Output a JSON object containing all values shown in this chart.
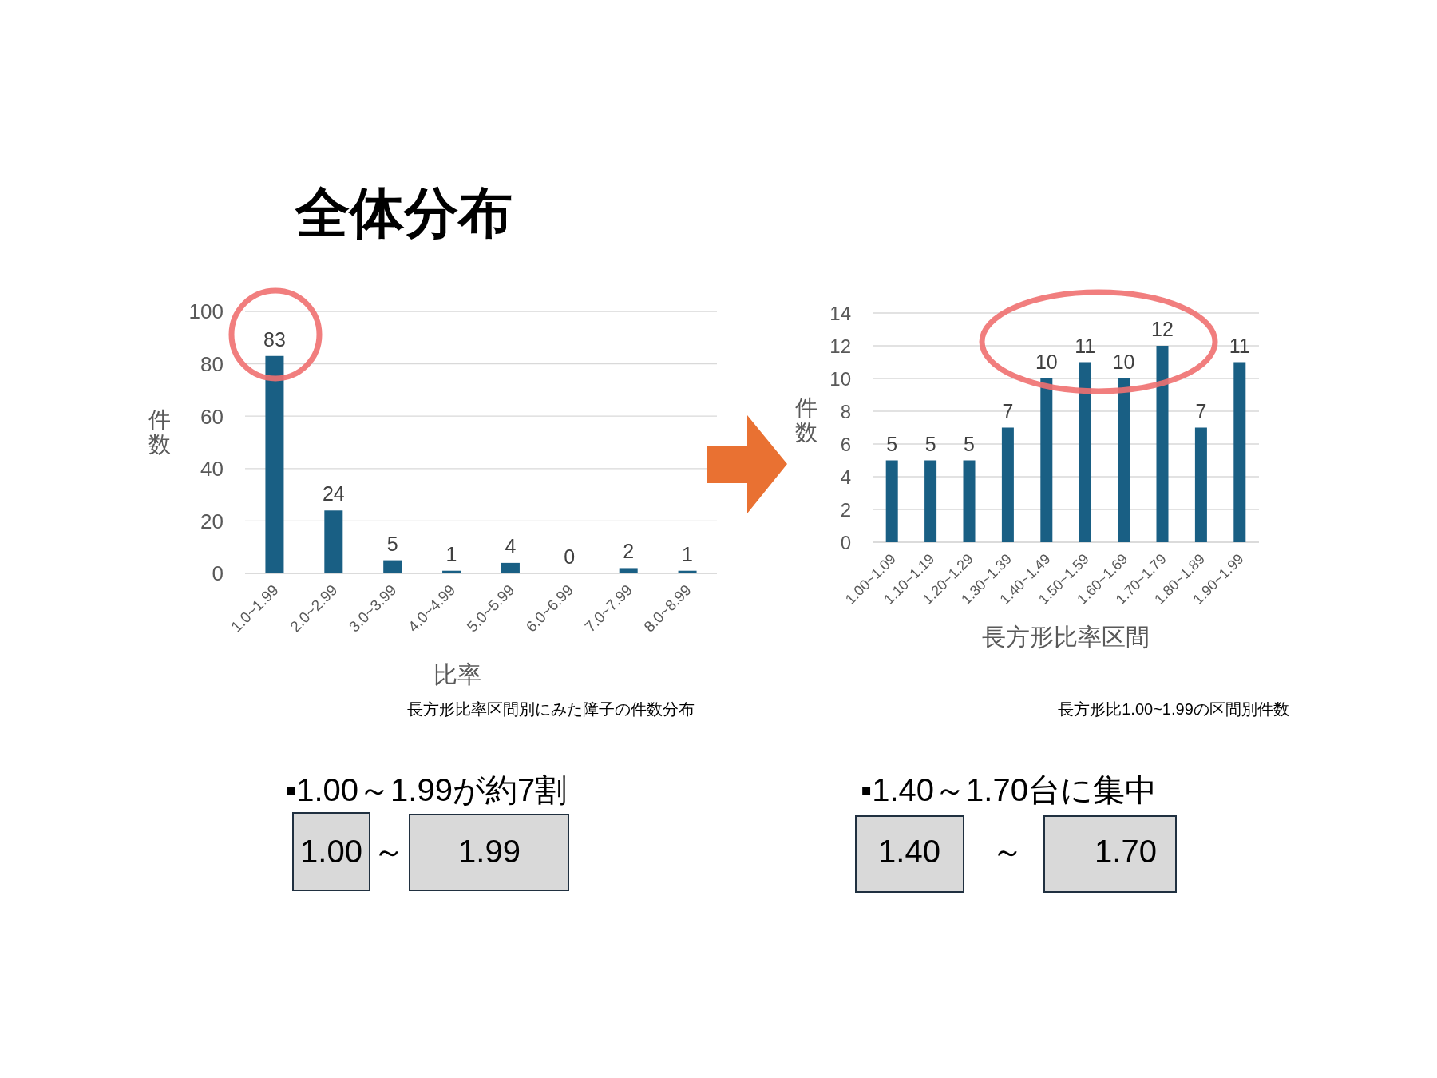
{
  "chart_data": [
    {
      "type": "bar",
      "title": "全体分布",
      "xlabel": "比率",
      "ylabel": "件数",
      "categories": [
        "1.0~1.99",
        "2.0~2.99",
        "3.0~3.99",
        "4.0~4.99",
        "5.0~5.99",
        "6.0~6.99",
        "7.0~7.99",
        "8.0~8.99"
      ],
      "values": [
        83,
        24,
        5,
        1,
        4,
        0,
        2,
        1
      ],
      "color": "#195f84",
      "ylim": [
        0,
        100
      ],
      "yticks": [
        0,
        20,
        40,
        60,
        80,
        100
      ],
      "grid": "y",
      "data_labels": true,
      "annotations": [
        "長方形比率区間別にみた障子の件数分布",
        "▪1.00～1.99が約7割",
        "1.00",
        "～",
        "1.99"
      ]
    },
    {
      "type": "bar",
      "xlabel": "長方形比率区間",
      "ylabel": "件数",
      "categories": [
        "1.00~1.09",
        "1.10~1.19",
        "1.20~1.29",
        "1.30~1.39",
        "1.40~1.49",
        "1.50~1.59",
        "1.60~1.69",
        "1.70~1.79",
        "1.80~1.89",
        "1.90~1.99"
      ],
      "values": [
        5,
        5,
        5,
        7,
        10,
        11,
        10,
        12,
        7,
        11
      ],
      "color": "#195f84",
      "ylim": [
        0,
        14
      ],
      "yticks": [
        0,
        2,
        4,
        6,
        8,
        10,
        12,
        14
      ],
      "grid": "y",
      "data_labels": true,
      "annotations": [
        "長方形比1.00~1.99の区間別件数",
        "▪1.40～1.70台に集中",
        "1.40",
        "～",
        "1.70"
      ]
    }
  ]
}
